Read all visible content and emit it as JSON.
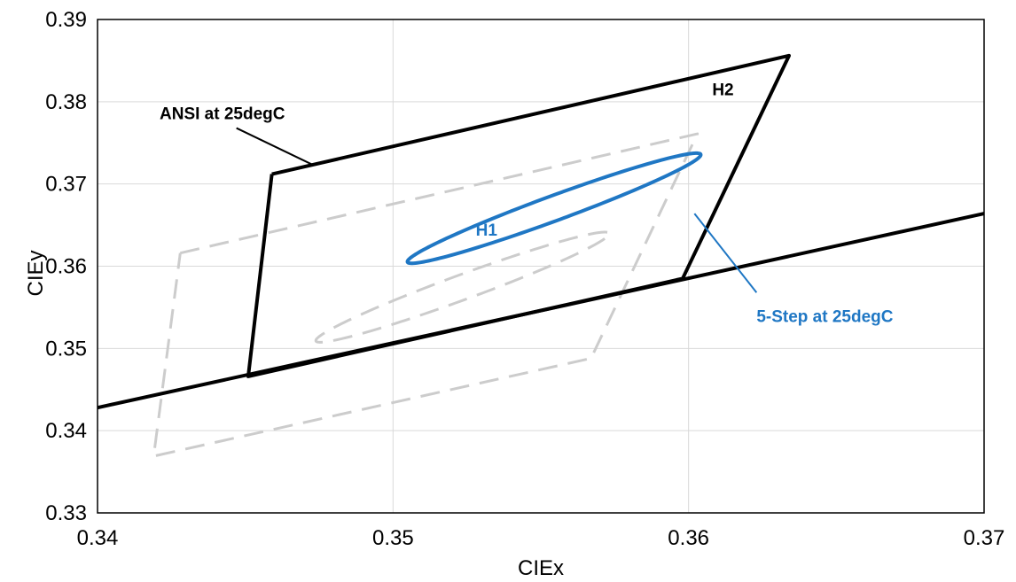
{
  "chart_data": {
    "type": "scatter",
    "title": "",
    "xlabel": "CIEx",
    "ylabel": "CIEy",
    "xlim": [
      0.34,
      0.37
    ],
    "ylim": [
      0.33,
      0.39
    ],
    "x_ticks": [
      "0.34",
      "0.35",
      "0.36",
      "0.37"
    ],
    "y_ticks": [
      "0.33",
      "0.34",
      "0.35",
      "0.36",
      "0.37",
      "0.38",
      "0.39"
    ],
    "grid": true,
    "legend": "none",
    "colors": {
      "ansi": "#000000",
      "ellipse": "#1f77c4",
      "gray_dashed": "#cccccc",
      "grid": "#d9d9d9"
    },
    "series": [
      {
        "style": "solid-black",
        "role": "ansi-quadrangle",
        "x": [
          0.3459,
          0.3634,
          0.3598,
          0.3451,
          0.3459
        ],
        "y": [
          0.3712,
          0.3856,
          0.3585,
          0.3466,
          0.3712
        ]
      },
      {
        "style": "solid-black",
        "role": "line",
        "x": [
          0.34,
          0.37
        ],
        "y": [
          0.3428,
          0.3664
        ]
      },
      {
        "style": "solid-blue",
        "role": "ellipse",
        "center": [
          0.35545,
          0.36705
        ],
        "a": 0.00828,
        "b": 0.00097,
        "angle_deg": 53.7
      },
      {
        "style": "dashed-gray",
        "role": "shifted-quadrangle",
        "x": [
          0.3428,
          0.3603,
          0.3567,
          0.3419,
          0.3428
        ],
        "y": [
          0.3616,
          0.3761,
          0.3488,
          0.3369,
          0.3616
        ]
      },
      {
        "style": "dashed-gray",
        "role": "shifted-ellipse",
        "center": [
          0.35235,
          0.35745
        ],
        "a": 0.00828,
        "b": 0.00097,
        "angle_deg": 53.7
      }
    ],
    "annotations": [
      {
        "text": "ANSI at 25degC",
        "x": 0.3421,
        "y": 0.3779,
        "color": "#000000",
        "arrow_from": [
          0.3447,
          0.3768
        ],
        "arrow_to": [
          0.3473,
          0.3723
        ]
      },
      {
        "text": "H2",
        "x": 0.3608,
        "y": 0.3808,
        "color": "#000000"
      },
      {
        "text": "H1",
        "x": 0.3528,
        "y": 0.3637,
        "color": "#1f77c4"
      },
      {
        "text": "5-Step at 25degC",
        "x": 0.3623,
        "y": 0.3532,
        "color": "#1f77c4",
        "arrow_from": [
          0.3623,
          0.3568
        ],
        "arrow_to": [
          0.3602,
          0.3664
        ]
      }
    ]
  }
}
